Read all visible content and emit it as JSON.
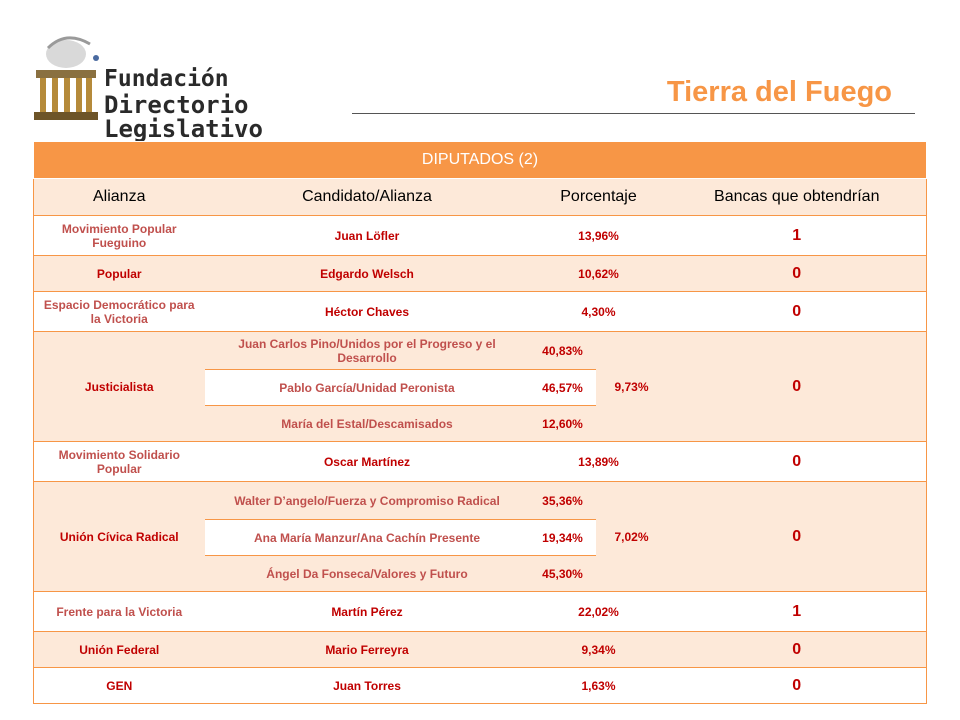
{
  "brand": {
    "line1": "Fundación",
    "line2": "Directorio Legislativo"
  },
  "region_title": "Tierra del Fuego",
  "colors": {
    "accent": "#f79646",
    "row_tint": "#fde9d9",
    "text_red": "#c00000",
    "text_orange": "#c0504d"
  },
  "table": {
    "header": "DIPUTADOS (2)",
    "columns": [
      "Alianza",
      "Candidato/Alianza",
      "Porcentaje",
      "Bancas que obtendrían"
    ],
    "rows": [
      {
        "alianza": "Movimiento Popular Fueguino",
        "candidato": "Juan Löfler",
        "porcentaje": "13,96%",
        "bancas": "1"
      },
      {
        "alianza": "Popular",
        "candidato": "Edgardo Welsch",
        "porcentaje": "10,62%",
        "bancas": "0"
      },
      {
        "alianza": "Espacio Democrático para la Victoria",
        "candidato": "Héctor Chaves",
        "porcentaje": "4,30%",
        "bancas": "0"
      },
      {
        "alianza": "Justicialista",
        "total": "9,73%",
        "bancas": "0",
        "sub": [
          {
            "candidato": "Juan Carlos Pino/Unidos por el Progreso y el Desarrollo",
            "porcentaje": "40,83%"
          },
          {
            "candidato": "Pablo García/Unidad Peronista",
            "porcentaje": "46,57%"
          },
          {
            "candidato": "María del Estal/Descamisados",
            "porcentaje": "12,60%"
          }
        ]
      },
      {
        "alianza": "Movimiento Solidario Popular",
        "candidato": "Oscar Martínez",
        "porcentaje": "13,89%",
        "bancas": "0"
      },
      {
        "alianza": "Unión Cívica Radical",
        "total": "7,02%",
        "bancas": "0",
        "sub": [
          {
            "candidato": "Walter D’angelo/Fuerza y Compromiso Radical",
            "porcentaje": "35,36%"
          },
          {
            "candidato": "Ana María Manzur/Ana Cachín Presente",
            "porcentaje": "19,34%"
          },
          {
            "candidato": "Ángel Da Fonseca/Valores y Futuro",
            "porcentaje": "45,30%"
          }
        ]
      },
      {
        "alianza": "Frente para la Victoria",
        "candidato": "Martín Pérez",
        "porcentaje": "22,02%",
        "bancas": "1"
      },
      {
        "alianza": "Unión Federal",
        "candidato": "Mario Ferreyra",
        "porcentaje": "9,34%",
        "bancas": "0"
      },
      {
        "alianza": "GEN",
        "candidato": "Juan Torres",
        "porcentaje": "1,63%",
        "bancas": "0"
      }
    ]
  }
}
